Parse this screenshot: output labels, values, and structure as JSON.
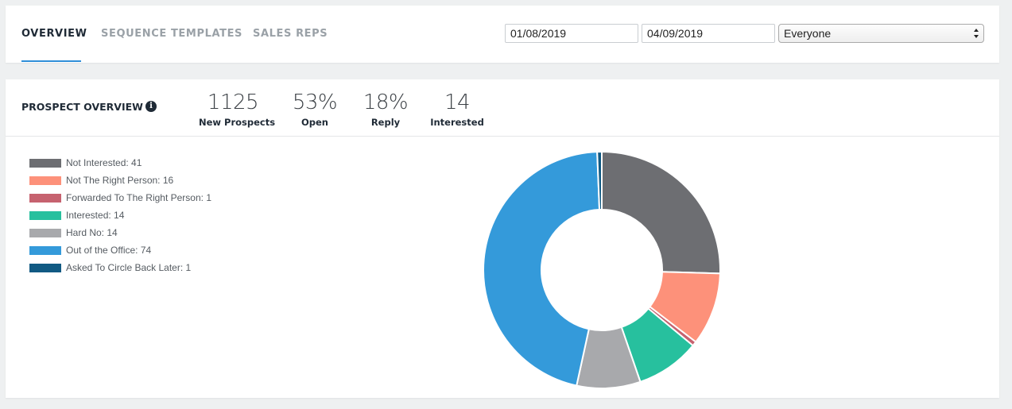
{
  "nav": {
    "tabs": [
      {
        "label": "OVERVIEW",
        "active": true
      },
      {
        "label": "SEQUENCE TEMPLATES",
        "active": false
      },
      {
        "label": "SALES REPS",
        "active": false
      }
    ],
    "start_date": "01/08/2019",
    "end_date": "04/09/2019",
    "user_filter": "Everyone"
  },
  "overview": {
    "title": "PROSPECT OVERVIEW",
    "info_icon": "info-icon",
    "stats": [
      {
        "value": "1125",
        "label": "New Prospects"
      },
      {
        "value": "53%",
        "label": "Open"
      },
      {
        "value": "18%",
        "label": "Reply"
      },
      {
        "value": "14",
        "label": "Interested"
      }
    ]
  },
  "chart_data": {
    "type": "pie",
    "style": "donut",
    "legend_position": "left",
    "slices": [
      {
        "label": "Not Interested: 41",
        "name": "Not Interested",
        "value": 41,
        "color": "#6d6e72"
      },
      {
        "label": "Not The Right Person: 16",
        "name": "Not The Right Person",
        "value": 16,
        "color": "#fd917a"
      },
      {
        "label": "Forwarded To The Right Person: 1",
        "name": "Forwarded To The Right Person",
        "value": 1,
        "color": "#c6626f"
      },
      {
        "label": "Interested: 14",
        "name": "Interested",
        "value": 14,
        "color": "#27c09e"
      },
      {
        "label": "Hard No: 14",
        "name": "Hard No",
        "value": 14,
        "color": "#a8a9ac"
      },
      {
        "label": "Out of the Office: 74",
        "name": "Out of the Office",
        "value": 74,
        "color": "#349ada"
      },
      {
        "label": "Asked To Circle Back Later: 1",
        "name": "Asked To Circle Back Later",
        "value": 1,
        "color": "#115a83"
      }
    ]
  }
}
